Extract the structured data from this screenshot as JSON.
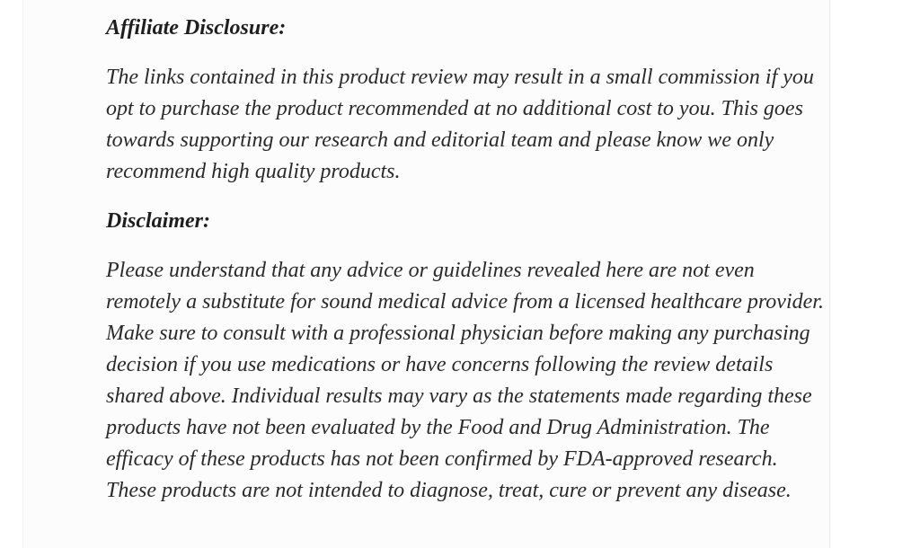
{
  "page": {
    "background_color": "#ffffff",
    "content_background_color": "#fcfcfc",
    "heading_color": "#1e1e1e",
    "body_text_color": "#2a2a2a"
  },
  "document": {
    "sections": [
      {
        "heading": "Affiliate Disclosure:",
        "body": "The links contained in this product review may result in a small commission if you opt to purchase the product recommended at no additional cost to you. This goes towards supporting our research and editorial team and please know we only recommend high quality products."
      },
      {
        "heading": "Disclaimer:",
        "body": "Please understand that any advice or guidelines revealed here are not even remotely a substitute for sound medical advice from a licensed healthcare provider. Make sure to consult with a professional physician before making any purchasing decision if you use medications or have concerns following the review details shared above. Individual results may vary as the statements made regarding these products have not been evaluated by the Food and Drug Administration. The efficacy of these products has not been confirmed by FDA-approved research. These products are not intended to diagnose, treat, cure or prevent any disease."
      }
    ]
  }
}
